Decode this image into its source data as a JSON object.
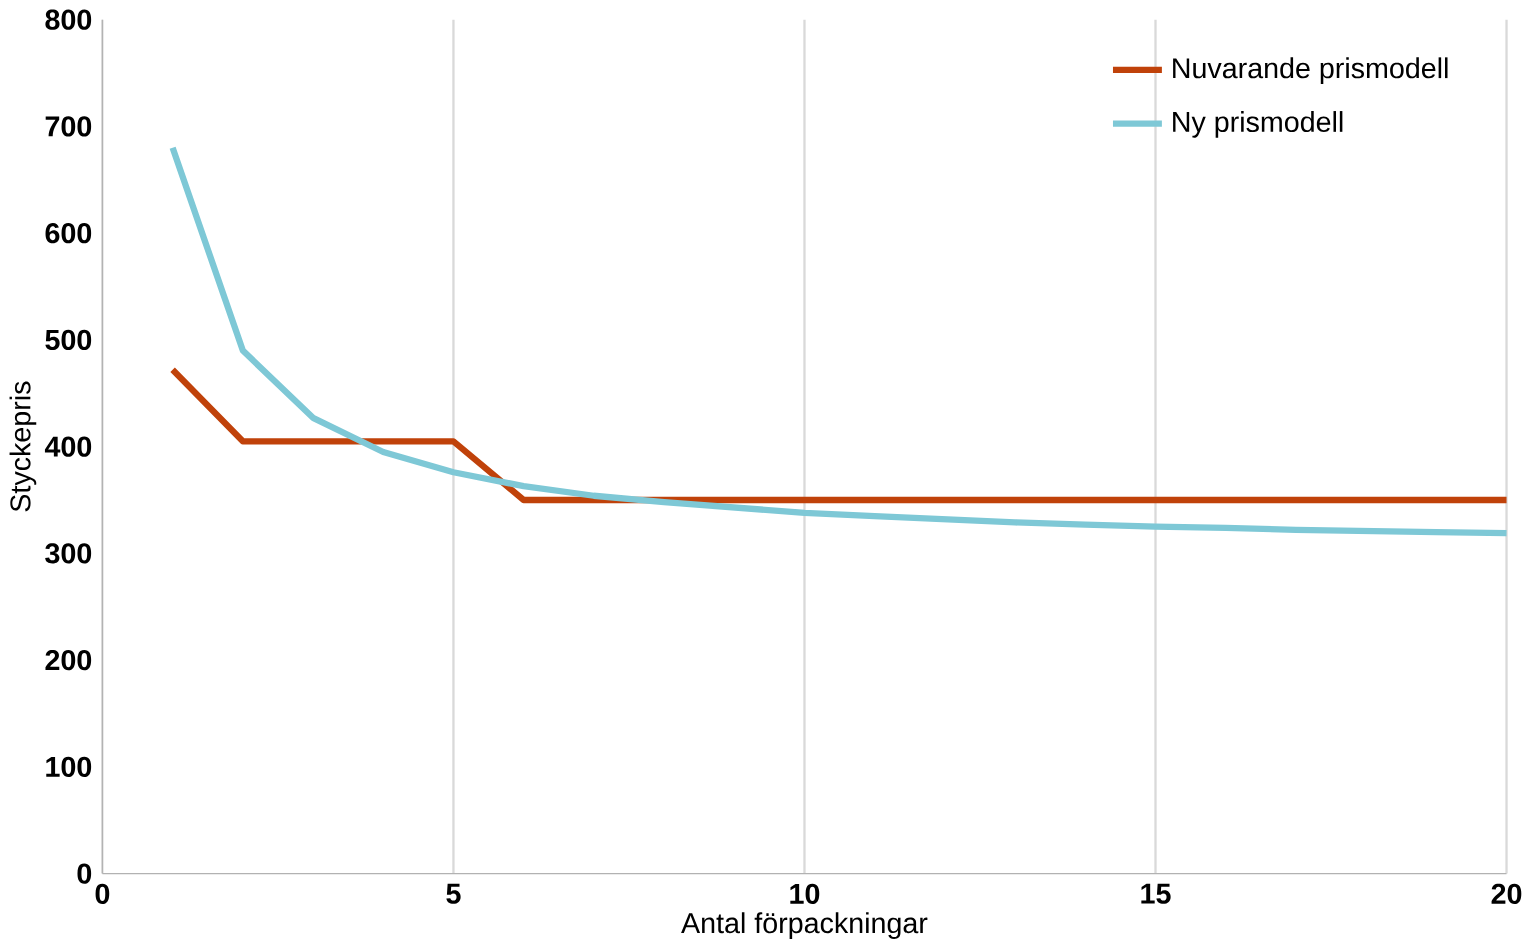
{
  "chart_data": {
    "type": "line",
    "xlabel": "Antal förpackningar",
    "ylabel": "Styckepris",
    "series": [
      {
        "name": "Nuvarande prismodell",
        "color": "#c0420a",
        "x": [
          1,
          2,
          3,
          4,
          5,
          6,
          7,
          8,
          9,
          10,
          11,
          12,
          13,
          14,
          15,
          16,
          17,
          18,
          19,
          20
        ],
        "values": [
          472,
          405,
          405,
          405,
          405,
          350,
          350,
          350,
          350,
          350,
          350,
          350,
          350,
          350,
          350,
          350,
          350,
          350,
          350,
          350
        ]
      },
      {
        "name": "Ny prismodell",
        "color": "#7ec8d6",
        "x": [
          1,
          2,
          3,
          4,
          5,
          6,
          7,
          8,
          9,
          10,
          11,
          12,
          13,
          14,
          15,
          16,
          17,
          18,
          19,
          20
        ],
        "values": [
          680,
          490,
          427,
          395,
          376,
          363,
          354,
          348,
          343,
          338,
          335,
          332,
          329,
          327,
          325,
          324,
          322,
          321,
          320,
          319
        ]
      }
    ],
    "xlim": [
      0,
      20
    ],
    "xticks": [
      0,
      5,
      10,
      15,
      20
    ],
    "ylim": [
      0,
      800
    ],
    "yticks": [
      0,
      100,
      200,
      300,
      400,
      500,
      600,
      700,
      800
    ],
    "grid": "x",
    "legend": "top right",
    "marker": "none",
    "line_style": "solid"
  }
}
